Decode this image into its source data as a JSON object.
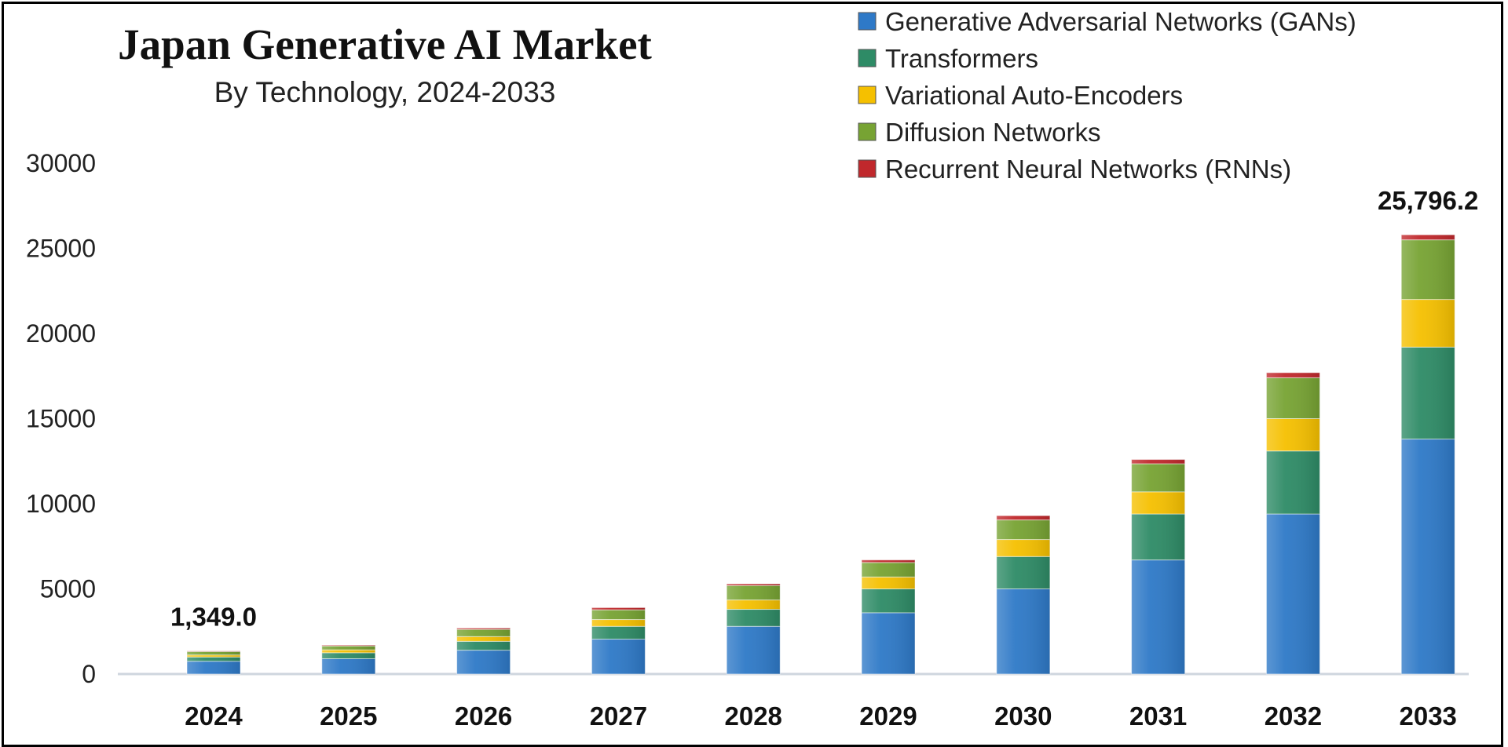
{
  "chart_data": {
    "type": "bar",
    "stacked": true,
    "title": "Japan Generative AI Market",
    "subtitle": "By Technology,  2024-2033",
    "categories": [
      "2024",
      "2025",
      "2026",
      "2027",
      "2028",
      "2029",
      "2030",
      "2031",
      "2032",
      "2033"
    ],
    "series": [
      {
        "name": "Generative Adversarial Networks (GANs)",
        "color": "#2e79c7",
        "values": [
          750,
          900,
          1400,
          2050,
          2800,
          3600,
          5000,
          6700,
          9400,
          13800
        ]
      },
      {
        "name": "Transformers",
        "color": "#2e8b66",
        "values": [
          250,
          350,
          520,
          750,
          1000,
          1400,
          1900,
          2700,
          3700,
          5400
        ]
      },
      {
        "name": "Variational Auto-Encoders",
        "color": "#f5c000",
        "values": [
          120,
          170,
          280,
          400,
          550,
          700,
          1000,
          1300,
          1900,
          2800
        ]
      },
      {
        "name": "Diffusion Networks",
        "color": "#77a333",
        "values": [
          200,
          230,
          420,
          570,
          850,
          850,
          1150,
          1650,
          2400,
          3500
        ]
      },
      {
        "name": "Recurrent Neural Networks (RNNs)",
        "color": "#c0282c",
        "values": [
          29,
          50,
          80,
          130,
          100,
          150,
          250,
          250,
          300,
          296.2
        ]
      }
    ],
    "data_labels": [
      {
        "category": "2024",
        "text": "1,349.0"
      },
      {
        "category": "2033",
        "text": "25,796.2"
      }
    ],
    "yticks": [
      "0",
      "5000",
      "10000",
      "15000",
      "20000",
      "25000",
      "30000"
    ],
    "ylim": [
      0,
      30000
    ],
    "xlabel": "",
    "ylabel": "",
    "legend_position": "top-right",
    "grid": false
  }
}
